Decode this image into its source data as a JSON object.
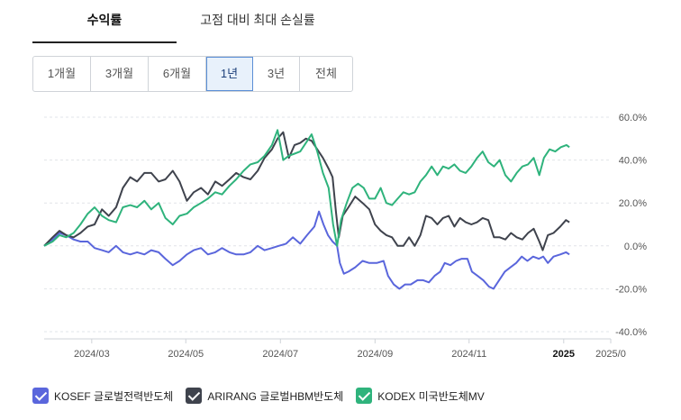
{
  "tabs": [
    {
      "label": "수익률",
      "active": true
    },
    {
      "label": "고점 대비 최대 손실률",
      "active": false
    }
  ],
  "periods": [
    {
      "label": "1개월",
      "active": false
    },
    {
      "label": "3개월",
      "active": false
    },
    {
      "label": "6개월",
      "active": false
    },
    {
      "label": "1년",
      "active": true
    },
    {
      "label": "3년",
      "active": false
    },
    {
      "label": "전체",
      "active": false
    }
  ],
  "chart_data": {
    "type": "line",
    "title": "",
    "xlabel": "",
    "ylabel": "",
    "x_ticks": [
      "2024/03",
      "2024/05",
      "2024/07",
      "2024/09",
      "2024/11",
      "2025",
      "2025/0"
    ],
    "x_tick_values": [
      2024.167,
      2024.333,
      2024.5,
      2024.667,
      2024.833,
      2025.0,
      2025.083
    ],
    "y_ticks": [
      "60.0%",
      "40.0%",
      "20.0%",
      "0.0%",
      "-20.0%",
      "-40.0%"
    ],
    "y_tick_values": [
      60,
      40,
      20,
      0,
      -20,
      -40
    ],
    "ylim": [
      -40,
      60
    ],
    "xlim": [
      2024.083,
      2025.083
    ],
    "grid": true,
    "legend_position": "bottom",
    "series": [
      {
        "name": "KOSEF 글로벌전력반도체",
        "color": "#5a66dc",
        "points": [
          [
            2024.083,
            0
          ],
          [
            2024.098,
            3
          ],
          [
            2024.11,
            6
          ],
          [
            2024.122,
            5
          ],
          [
            2024.135,
            3
          ],
          [
            2024.147,
            2
          ],
          [
            2024.16,
            2
          ],
          [
            2024.172,
            -1
          ],
          [
            2024.185,
            -2
          ],
          [
            2024.197,
            -3
          ],
          [
            2024.21,
            0
          ],
          [
            2024.222,
            -3
          ],
          [
            2024.235,
            -4
          ],
          [
            2024.247,
            -3
          ],
          [
            2024.26,
            -4
          ],
          [
            2024.272,
            -2
          ],
          [
            2024.285,
            -3
          ],
          [
            2024.297,
            -6
          ],
          [
            2024.31,
            -9
          ],
          [
            2024.322,
            -7
          ],
          [
            2024.335,
            -4
          ],
          [
            2024.347,
            -2
          ],
          [
            2024.36,
            -1
          ],
          [
            2024.372,
            -4
          ],
          [
            2024.385,
            -3
          ],
          [
            2024.397,
            -1
          ],
          [
            2024.41,
            -3
          ],
          [
            2024.422,
            -4
          ],
          [
            2024.435,
            -4
          ],
          [
            2024.447,
            -3
          ],
          [
            2024.46,
            0
          ],
          [
            2024.472,
            -2
          ],
          [
            2024.485,
            -1
          ],
          [
            2024.497,
            0
          ],
          [
            2024.51,
            1
          ],
          [
            2024.522,
            4
          ],
          [
            2024.535,
            1
          ],
          [
            2024.547,
            5
          ],
          [
            2024.56,
            9
          ],
          [
            2024.568,
            16
          ],
          [
            2024.576,
            10
          ],
          [
            2024.584,
            5
          ],
          [
            2024.592,
            2
          ],
          [
            2024.6,
            0
          ],
          [
            2024.605,
            -8
          ],
          [
            2024.612,
            -13
          ],
          [
            2024.62,
            -12
          ],
          [
            2024.632,
            -10
          ],
          [
            2024.645,
            -7
          ],
          [
            2024.657,
            -8
          ],
          [
            2024.67,
            -8
          ],
          [
            2024.682,
            -7
          ],
          [
            2024.69,
            -14
          ],
          [
            2024.7,
            -18
          ],
          [
            2024.71,
            -20
          ],
          [
            2024.72,
            -18
          ],
          [
            2024.73,
            -18
          ],
          [
            2024.742,
            -16
          ],
          [
            2024.752,
            -16
          ],
          [
            2024.762,
            -17
          ],
          [
            2024.772,
            -14
          ],
          [
            2024.782,
            -12
          ],
          [
            2024.79,
            -8
          ],
          [
            2024.8,
            -9
          ],
          [
            2024.81,
            -7
          ],
          [
            2024.82,
            -6
          ],
          [
            2024.83,
            -6
          ],
          [
            2024.838,
            -12
          ],
          [
            2024.848,
            -14
          ],
          [
            2024.858,
            -16
          ],
          [
            2024.868,
            -19
          ],
          [
            2024.876,
            -20
          ],
          [
            2024.886,
            -16
          ],
          [
            2024.896,
            -12
          ],
          [
            2024.906,
            -10
          ],
          [
            2024.916,
            -8
          ],
          [
            2024.926,
            -5
          ],
          [
            2024.936,
            -7
          ],
          [
            2024.946,
            -5
          ],
          [
            2024.956,
            -6
          ],
          [
            2024.964,
            -5
          ],
          [
            2024.972,
            -8
          ],
          [
            2024.982,
            -5
          ],
          [
            2024.994,
            -4
          ],
          [
            2025.004,
            -3
          ],
          [
            2025.01,
            -4
          ]
        ]
      },
      {
        "name": "ARIRANG 글로벌HBM반도체",
        "color": "#3f434d",
        "points": [
          [
            2024.083,
            0
          ],
          [
            2024.098,
            4
          ],
          [
            2024.11,
            7
          ],
          [
            2024.122,
            5
          ],
          [
            2024.135,
            4
          ],
          [
            2024.147,
            6
          ],
          [
            2024.16,
            9
          ],
          [
            2024.172,
            10
          ],
          [
            2024.185,
            17
          ],
          [
            2024.197,
            14
          ],
          [
            2024.21,
            18
          ],
          [
            2024.222,
            27
          ],
          [
            2024.235,
            32
          ],
          [
            2024.247,
            30
          ],
          [
            2024.26,
            34
          ],
          [
            2024.272,
            34
          ],
          [
            2024.285,
            30
          ],
          [
            2024.297,
            31
          ],
          [
            2024.31,
            35
          ],
          [
            2024.322,
            30
          ],
          [
            2024.335,
            21
          ],
          [
            2024.347,
            25
          ],
          [
            2024.36,
            27
          ],
          [
            2024.372,
            24
          ],
          [
            2024.385,
            30
          ],
          [
            2024.397,
            28
          ],
          [
            2024.41,
            31
          ],
          [
            2024.422,
            34
          ],
          [
            2024.435,
            32
          ],
          [
            2024.447,
            31
          ],
          [
            2024.46,
            35
          ],
          [
            2024.472,
            41
          ],
          [
            2024.485,
            45
          ],
          [
            2024.495,
            50
          ],
          [
            2024.505,
            53
          ],
          [
            2024.515,
            41
          ],
          [
            2024.525,
            47
          ],
          [
            2024.535,
            48
          ],
          [
            2024.545,
            50
          ],
          [
            2024.555,
            49
          ],
          [
            2024.565,
            45
          ],
          [
            2024.575,
            41
          ],
          [
            2024.585,
            36
          ],
          [
            2024.592,
            32
          ],
          [
            2024.598,
            16
          ],
          [
            2024.603,
            4
          ],
          [
            2024.61,
            14
          ],
          [
            2024.62,
            18
          ],
          [
            2024.632,
            23
          ],
          [
            2024.645,
            20
          ],
          [
            2024.657,
            17
          ],
          [
            2024.667,
            10
          ],
          [
            2024.677,
            7
          ],
          [
            2024.687,
            5
          ],
          [
            2024.697,
            4
          ],
          [
            2024.707,
            0
          ],
          [
            2024.717,
            0
          ],
          [
            2024.727,
            4
          ],
          [
            2024.737,
            0
          ],
          [
            2024.747,
            5
          ],
          [
            2024.757,
            14
          ],
          [
            2024.767,
            13
          ],
          [
            2024.777,
            10
          ],
          [
            2024.787,
            13
          ],
          [
            2024.797,
            14
          ],
          [
            2024.807,
            9
          ],
          [
            2024.817,
            13
          ],
          [
            2024.827,
            11
          ],
          [
            2024.837,
            10
          ],
          [
            2024.847,
            11
          ],
          [
            2024.857,
            13
          ],
          [
            2024.867,
            12
          ],
          [
            2024.877,
            4
          ],
          [
            2024.887,
            4
          ],
          [
            2024.897,
            3
          ],
          [
            2024.907,
            6
          ],
          [
            2024.917,
            4
          ],
          [
            2024.927,
            3
          ],
          [
            2024.937,
            6
          ],
          [
            2024.947,
            8
          ],
          [
            2024.957,
            2
          ],
          [
            2024.963,
            -2
          ],
          [
            2024.972,
            5
          ],
          [
            2024.982,
            6
          ],
          [
            2024.994,
            9
          ],
          [
            2025.004,
            12
          ],
          [
            2025.01,
            11
          ]
        ]
      },
      {
        "name": "KODEX 미국반도체MV",
        "color": "#2fb37c",
        "points": [
          [
            2024.083,
            0
          ],
          [
            2024.098,
            2
          ],
          [
            2024.11,
            5
          ],
          [
            2024.122,
            4
          ],
          [
            2024.135,
            6
          ],
          [
            2024.147,
            10
          ],
          [
            2024.16,
            15
          ],
          [
            2024.172,
            18
          ],
          [
            2024.185,
            14
          ],
          [
            2024.197,
            12
          ],
          [
            2024.21,
            11
          ],
          [
            2024.222,
            18
          ],
          [
            2024.235,
            19
          ],
          [
            2024.247,
            18
          ],
          [
            2024.26,
            21
          ],
          [
            2024.272,
            17
          ],
          [
            2024.285,
            20
          ],
          [
            2024.297,
            13
          ],
          [
            2024.31,
            10
          ],
          [
            2024.322,
            14
          ],
          [
            2024.335,
            15
          ],
          [
            2024.347,
            18
          ],
          [
            2024.36,
            20
          ],
          [
            2024.372,
            22
          ],
          [
            2024.385,
            25
          ],
          [
            2024.397,
            24
          ],
          [
            2024.41,
            28
          ],
          [
            2024.422,
            31
          ],
          [
            2024.435,
            35
          ],
          [
            2024.447,
            38
          ],
          [
            2024.46,
            39
          ],
          [
            2024.472,
            42
          ],
          [
            2024.485,
            47
          ],
          [
            2024.495,
            54
          ],
          [
            2024.505,
            40
          ],
          [
            2024.515,
            42
          ],
          [
            2024.525,
            43
          ],
          [
            2024.535,
            44
          ],
          [
            2024.545,
            48
          ],
          [
            2024.555,
            52
          ],
          [
            2024.565,
            44
          ],
          [
            2024.575,
            34
          ],
          [
            2024.585,
            27
          ],
          [
            2024.593,
            10
          ],
          [
            2024.6,
            0
          ],
          [
            2024.607,
            12
          ],
          [
            2024.617,
            20
          ],
          [
            2024.627,
            27
          ],
          [
            2024.637,
            29
          ],
          [
            2024.647,
            27
          ],
          [
            2024.657,
            22
          ],
          [
            2024.667,
            22
          ],
          [
            2024.677,
            27
          ],
          [
            2024.687,
            20
          ],
          [
            2024.697,
            19
          ],
          [
            2024.707,
            22
          ],
          [
            2024.717,
            25
          ],
          [
            2024.727,
            24
          ],
          [
            2024.737,
            25
          ],
          [
            2024.747,
            30
          ],
          [
            2024.757,
            33
          ],
          [
            2024.767,
            37
          ],
          [
            2024.777,
            33
          ],
          [
            2024.787,
            37
          ],
          [
            2024.797,
            36
          ],
          [
            2024.807,
            38
          ],
          [
            2024.817,
            35
          ],
          [
            2024.827,
            34
          ],
          [
            2024.837,
            37
          ],
          [
            2024.847,
            41
          ],
          [
            2024.857,
            44
          ],
          [
            2024.867,
            39
          ],
          [
            2024.877,
            37
          ],
          [
            2024.887,
            40
          ],
          [
            2024.897,
            33
          ],
          [
            2024.907,
            30
          ],
          [
            2024.917,
            34
          ],
          [
            2024.927,
            37
          ],
          [
            2024.937,
            38
          ],
          [
            2024.947,
            41
          ],
          [
            2024.957,
            33
          ],
          [
            2024.965,
            41
          ],
          [
            2024.975,
            45
          ],
          [
            2024.985,
            44
          ],
          [
            2024.995,
            46
          ],
          [
            2025.005,
            47
          ],
          [
            2025.01,
            46
          ]
        ]
      }
    ]
  }
}
